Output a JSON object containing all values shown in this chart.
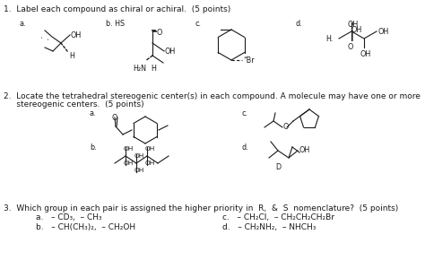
{
  "bg_color": "#ffffff",
  "fig_width": 4.74,
  "fig_height": 3.0,
  "dpi": 100,
  "question1": "1.  Label each compound as chiral or achiral.  (5 points)",
  "question2_line1": "2.  Locate the tetrahedral stereogenic center(s) in each compound. A molecule may have one or more",
  "question2_line2": "     stereogenic centers.  (5 points)",
  "question3": "3.  Which group in each pair is assigned the higher priority in  R,  &  S  nomenclature?  (5 points)",
  "q3a": "a.   – CD₃,  – CH₃",
  "q3b": "b.   – CH(CH₃)₂,  – CH₂OH",
  "q3c": "c.   – CH₂Cl,  – CH₂CH₂CH₂Br",
  "q3d": "d.   – CH₂NH₂,  – NHCH₃"
}
